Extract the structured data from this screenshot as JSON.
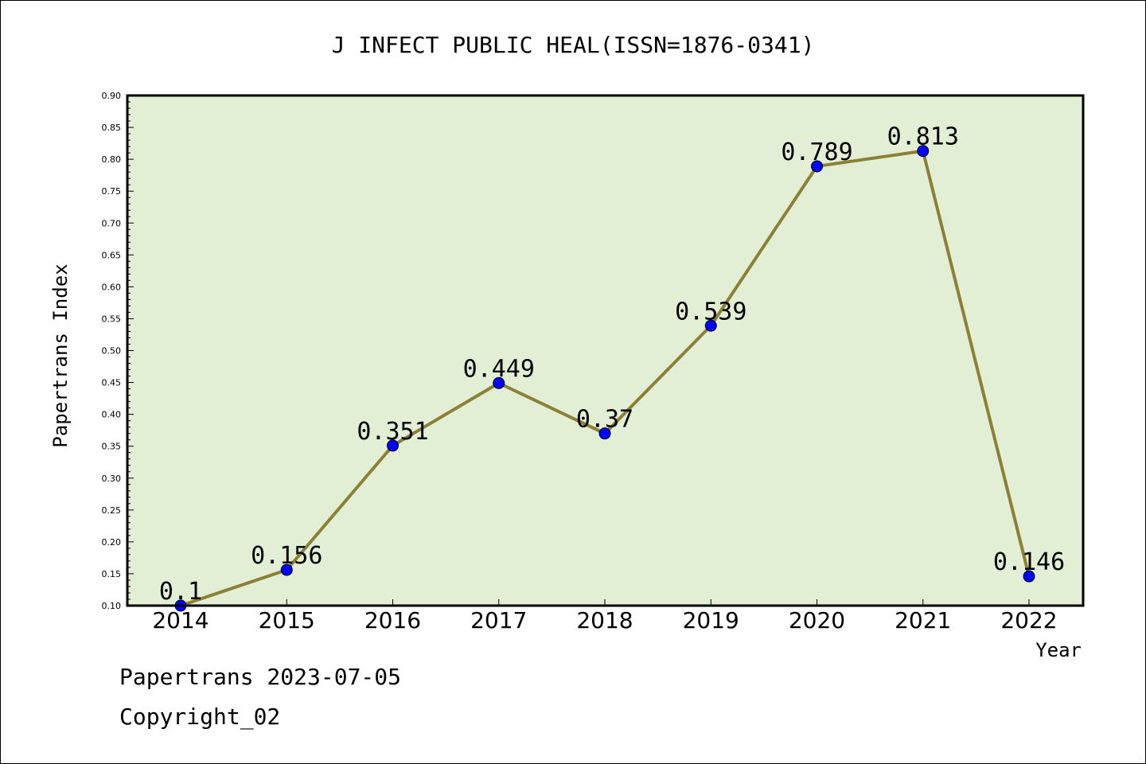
{
  "chart_data": {
    "type": "line",
    "title": "J INFECT PUBLIC HEAL(ISSN=1876-0341)",
    "xlabel": "Year",
    "ylabel": "Papertrans Index",
    "categories": [
      "2014",
      "2015",
      "2016",
      "2017",
      "2018",
      "2019",
      "2020",
      "2021",
      "2022"
    ],
    "series": [
      {
        "values": [
          0.1,
          0.156,
          0.351,
          0.449,
          0.37,
          0.539,
          0.789,
          0.813,
          0.146
        ],
        "data_labels": [
          "0.1",
          "0.156",
          "0.351",
          "0.449",
          "0.37",
          "0.539",
          "0.789",
          "0.813",
          "0.146"
        ]
      }
    ],
    "ylim": [
      0.1,
      0.9
    ],
    "yticks": [
      "0.10",
      "0.15",
      "0.20",
      "0.25",
      "0.30",
      "0.35",
      "0.40",
      "0.45",
      "0.50",
      "0.55",
      "0.60",
      "0.65",
      "0.70",
      "0.75",
      "0.80",
      "0.85",
      "0.90"
    ],
    "grid": false,
    "colors": {
      "plot_background": "#e2efd4",
      "line": "#8b8036",
      "marker": "#0000ff"
    }
  },
  "footer": {
    "line1": "Papertrans 2023-07-05",
    "line2": "Copyright_02"
  }
}
